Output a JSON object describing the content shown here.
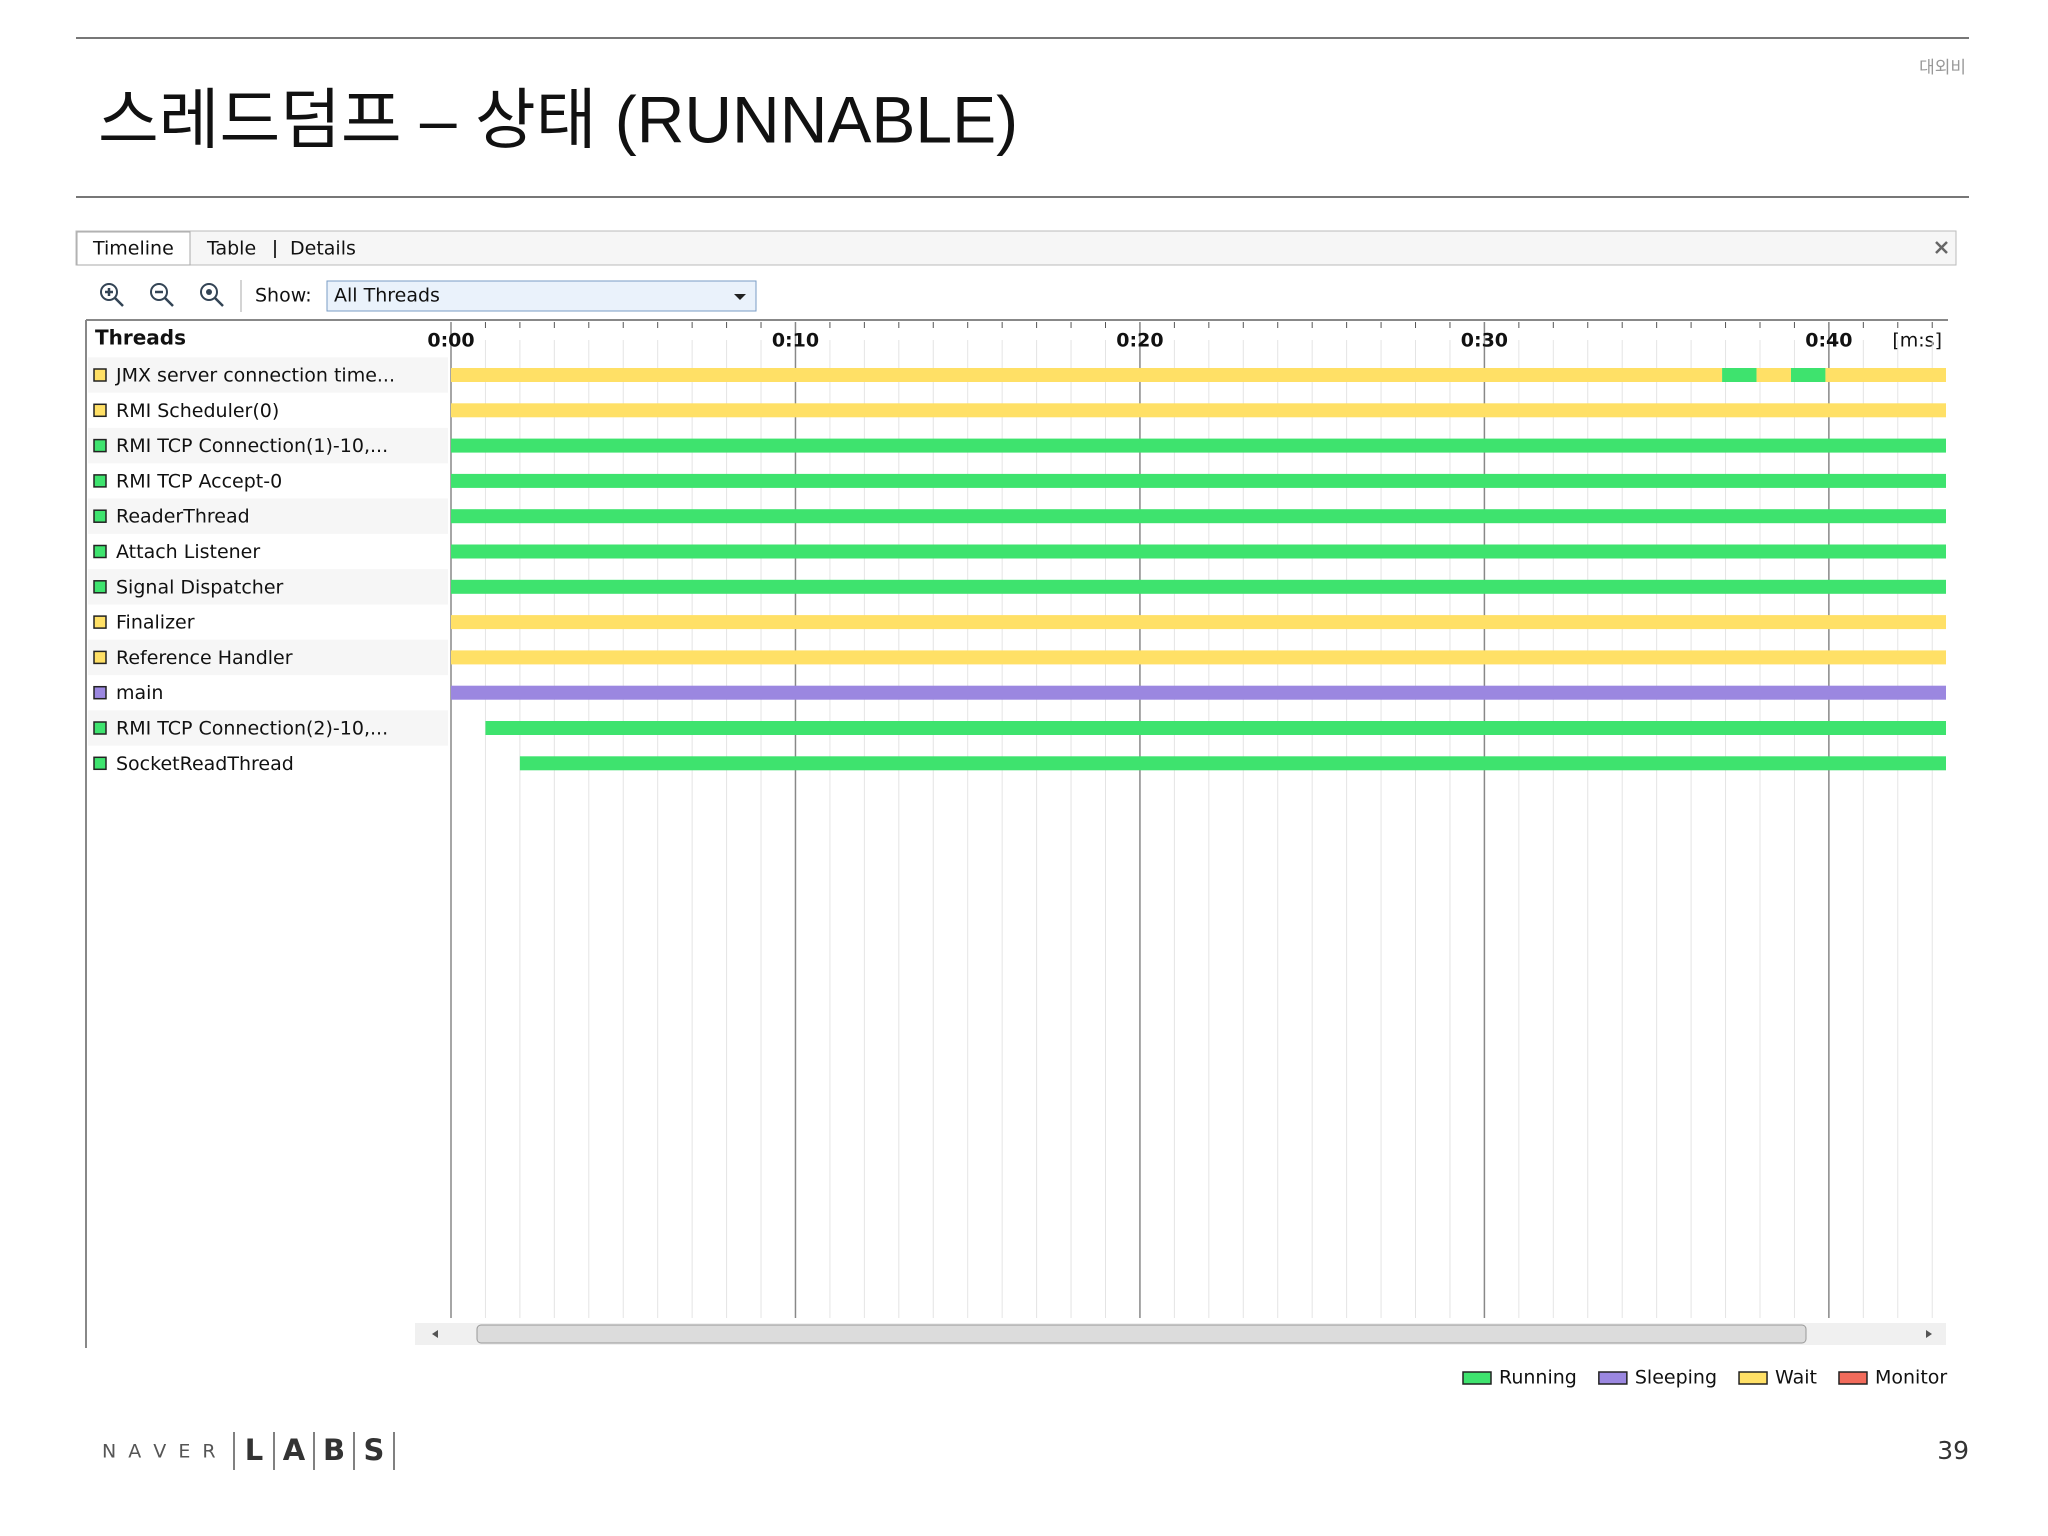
{
  "header": {
    "title": "스레드덤프 – 상태 (RUNNABLE)",
    "classification": "대외비"
  },
  "tabs": [
    "Timeline",
    "Table",
    "Details"
  ],
  "toolbar": {
    "show_label": "Show:",
    "show_value": "All Threads"
  },
  "timeline": {
    "threads_header": "Threads",
    "unit": "[m:s]",
    "xlim": [
      0,
      43.4
    ],
    "ticks": [
      {
        "value": 0,
        "label": "0:00"
      },
      {
        "value": 10,
        "label": "0:10"
      },
      {
        "value": 20,
        "label": "0:20"
      },
      {
        "value": 30,
        "label": "0:30"
      },
      {
        "value": 40,
        "label": "0:40"
      }
    ],
    "minor_grid_step": 1,
    "threads": [
      {
        "name": "JMX server connection time...",
        "state": "Wait",
        "segments": [
          {
            "state": "Wait",
            "start": 0,
            "end": 36.9
          },
          {
            "state": "Running",
            "start": 36.9,
            "end": 37.9
          },
          {
            "state": "Wait",
            "start": 37.9,
            "end": 38.9
          },
          {
            "state": "Running",
            "start": 38.9,
            "end": 39.9
          },
          {
            "state": "Wait",
            "start": 39.9,
            "end": 43.4
          }
        ]
      },
      {
        "name": "RMI Scheduler(0)",
        "state": "Wait",
        "segments": [
          {
            "state": "Wait",
            "start": 0,
            "end": 43.4
          }
        ]
      },
      {
        "name": "RMI TCP Connection(1)-10,...",
        "state": "Running",
        "segments": [
          {
            "state": "Running",
            "start": 0,
            "end": 43.4
          }
        ]
      },
      {
        "name": "RMI TCP Accept-0",
        "state": "Running",
        "segments": [
          {
            "state": "Running",
            "start": 0,
            "end": 43.4
          }
        ]
      },
      {
        "name": "ReaderThread",
        "state": "Running",
        "segments": [
          {
            "state": "Running",
            "start": 0,
            "end": 43.4
          }
        ]
      },
      {
        "name": "Attach Listener",
        "state": "Running",
        "segments": [
          {
            "state": "Running",
            "start": 0,
            "end": 43.4
          }
        ]
      },
      {
        "name": "Signal Dispatcher",
        "state": "Running",
        "segments": [
          {
            "state": "Running",
            "start": 0,
            "end": 43.4
          }
        ]
      },
      {
        "name": "Finalizer",
        "state": "Wait",
        "segments": [
          {
            "state": "Wait",
            "start": 0,
            "end": 43.4
          }
        ]
      },
      {
        "name": "Reference Handler",
        "state": "Wait",
        "segments": [
          {
            "state": "Wait",
            "start": 0,
            "end": 43.4
          }
        ]
      },
      {
        "name": "main",
        "state": "Sleeping",
        "segments": [
          {
            "state": "Sleeping",
            "start": 0,
            "end": 43.4
          }
        ]
      },
      {
        "name": "RMI TCP Connection(2)-10,...",
        "state": "Running",
        "segments": [
          {
            "state": "Running",
            "start": 1,
            "end": 43.4
          }
        ]
      },
      {
        "name": "SocketReadThread",
        "state": "Running",
        "segments": [
          {
            "state": "Running",
            "start": 2,
            "end": 43.4
          }
        ]
      }
    ],
    "legend": [
      {
        "name": "Running",
        "color": "#3ee36e"
      },
      {
        "name": "Sleeping",
        "color": "#9b87e0"
      },
      {
        "name": "Wait",
        "color": "#ffe066"
      },
      {
        "name": "Monitor",
        "color": "#f26b5b"
      }
    ]
  },
  "footer": {
    "logo_naver": "N A V E R",
    "logo_labs": [
      "L",
      "A",
      "B",
      "S"
    ],
    "page": "39"
  }
}
